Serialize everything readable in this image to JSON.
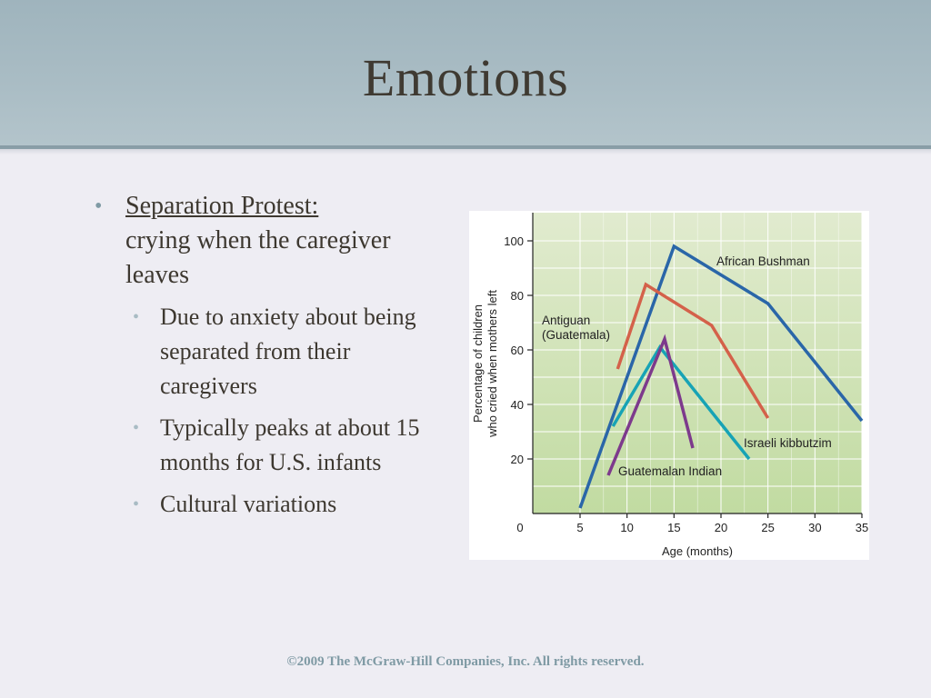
{
  "slide": {
    "title": "Emotions",
    "bullet_main_heading": "Separation Protest:",
    "bullet_main_text": "crying when the caregiver leaves",
    "sub_bullets": [
      "Due to anxiety about being separated from their caregivers",
      "Typically peaks at about 15 months for U.S. infants",
      "Cultural variations"
    ],
    "footer": "©2009 The McGraw-Hill Companies, Inc. All rights reserved."
  },
  "chart_data": {
    "type": "line",
    "title": "",
    "xlabel": "Age (months)",
    "ylabel_line1": "Percentage of children",
    "ylabel_line2": "who cried when mothers left",
    "xlim": [
      0,
      35
    ],
    "ylim": [
      0,
      100
    ],
    "x_ticks": [
      0,
      5,
      10,
      15,
      20,
      25,
      30,
      35
    ],
    "y_ticks": [
      20,
      40,
      60,
      80,
      100
    ],
    "grid": true,
    "series": [
      {
        "name": "African Bushman",
        "color": "#2a66a8",
        "x": [
          5,
          15,
          25,
          35
        ],
        "y": [
          2,
          98,
          77,
          34
        ]
      },
      {
        "name": "Antiguan (Guatemala)",
        "name_lines": [
          "Antiguan",
          "(Guatemala)"
        ],
        "color": "#d4614a",
        "x": [
          9,
          12,
          19,
          25
        ],
        "y": [
          53,
          84,
          69,
          35
        ]
      },
      {
        "name": "Israeli kibbutzim",
        "color": "#17a3b5",
        "x": [
          8.5,
          13.5,
          23
        ],
        "y": [
          32,
          61,
          20
        ]
      },
      {
        "name": "Guatemalan Indian",
        "color": "#7d3a8c",
        "x": [
          8,
          14,
          17
        ],
        "y": [
          14,
          64,
          24
        ]
      }
    ]
  }
}
